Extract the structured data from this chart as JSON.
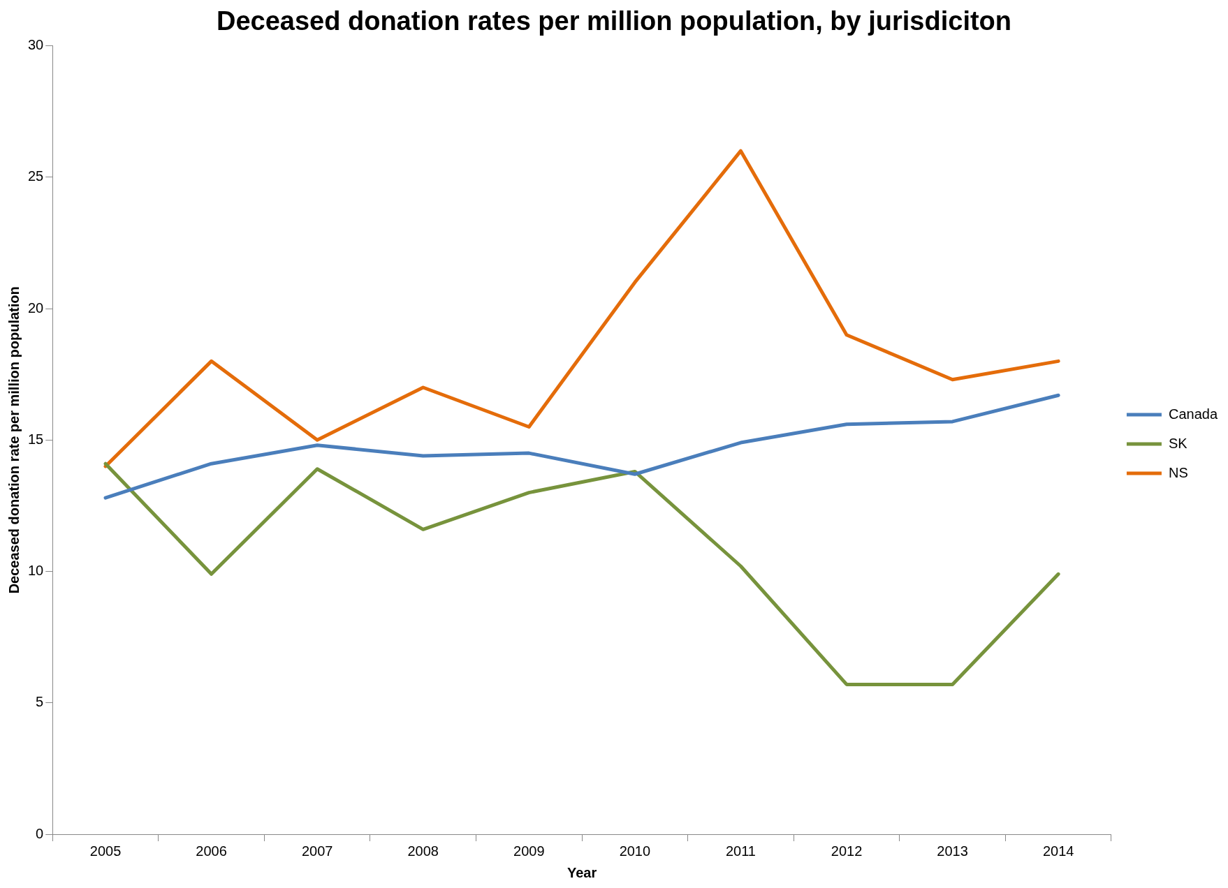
{
  "chart_data": {
    "type": "line",
    "title": "Deceased donation rates per million population, by jurisdiciton",
    "xlabel": "Year",
    "ylabel": "Deceased donation rate per million population",
    "categories": [
      "2005",
      "2006",
      "2007",
      "2008",
      "2009",
      "2010",
      "2011",
      "2012",
      "2013",
      "2014"
    ],
    "series": [
      {
        "name": "Canada",
        "color": "#4a7ebb",
        "values": [
          12.8,
          14.1,
          14.8,
          14.4,
          14.5,
          13.7,
          14.9,
          15.6,
          15.7,
          16.7
        ]
      },
      {
        "name": "SK",
        "color": "#77933c",
        "values": [
          14.1,
          9.9,
          13.9,
          11.6,
          13.0,
          13.8,
          10.2,
          5.7,
          5.7,
          9.9
        ]
      },
      {
        "name": "NS",
        "color": "#e46c0a",
        "values": [
          14.0,
          18.0,
          15.0,
          17.0,
          15.5,
          21.0,
          26.0,
          19.0,
          17.3,
          18.0
        ]
      }
    ],
    "ylim": [
      0,
      30
    ],
    "yticks": [
      0,
      5,
      10,
      15,
      20,
      25,
      30
    ],
    "grid": false,
    "legend": "right",
    "marker": "none",
    "line_style": "solid"
  }
}
